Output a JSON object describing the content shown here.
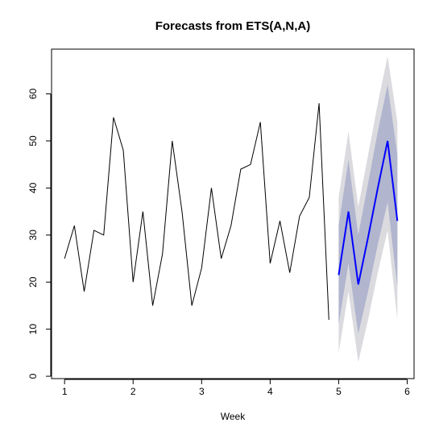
{
  "chart_data": {
    "type": "line",
    "title": "Forecasts from ETS(A,N,A)",
    "xlabel": "Week",
    "ylabel": "",
    "xlim": [
      0.81,
      6.1
    ],
    "ylim": [
      -0.5,
      69.5
    ],
    "xticks": [
      1,
      2,
      3,
      4,
      5,
      6
    ],
    "yticks": [
      0,
      10,
      20,
      30,
      40,
      50,
      60
    ],
    "grid": false,
    "legend": "none",
    "colors": {
      "observed": "#000000",
      "forecast": "#0000ff",
      "band80": "#b1b5ce",
      "band95": "#dbdbdf"
    },
    "observed": {
      "x": [
        1.0,
        1.143,
        1.286,
        1.429,
        1.571,
        1.714,
        1.857,
        2.0,
        2.143,
        2.286,
        2.429,
        2.571,
        2.714,
        2.857,
        3.0,
        3.143,
        3.286,
        3.429,
        3.571,
        3.714,
        3.857,
        4.0,
        4.143,
        4.286,
        4.429,
        4.571,
        4.714,
        4.857
      ],
      "y": [
        25,
        32,
        18,
        31,
        30,
        55,
        48,
        20,
        35,
        15,
        26,
        50,
        35,
        15,
        23,
        40,
        25,
        32,
        44,
        45,
        54,
        24,
        33,
        22,
        34,
        38,
        58,
        12
      ]
    },
    "forecast": {
      "x": [
        5.0,
        5.143,
        5.286,
        5.429,
        5.571,
        5.714,
        5.857
      ],
      "mean": [
        21.5,
        35,
        19.5,
        29.5,
        40,
        50,
        33
      ],
      "lo80": [
        11,
        24,
        9,
        18,
        28,
        37,
        19
      ],
      "hi80": [
        32,
        46,
        30,
        41,
        52,
        62,
        47
      ],
      "lo95": [
        5,
        18,
        3,
        12,
        22,
        31,
        12
      ],
      "hi95": [
        38,
        52,
        36,
        47,
        58,
        68,
        54
      ]
    }
  }
}
